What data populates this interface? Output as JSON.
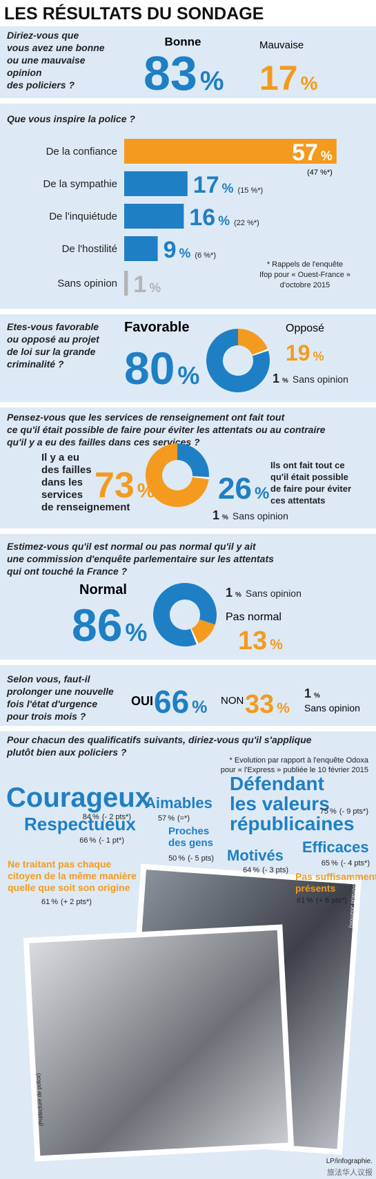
{
  "header": {
    "title": "LES RÉSULTATS DU SONDAGE"
  },
  "unit": "%",
  "q1": {
    "question": [
      "Diriez-vous que",
      "vous avez une bonne",
      "ou une mauvaise",
      "opinion",
      "des policiers ?"
    ],
    "options": [
      {
        "label": "Bonne",
        "value": 83,
        "color": "#1f7fc4"
      },
      {
        "label": "Mauvaise",
        "value": 17,
        "color": "#f39a1f"
      }
    ]
  },
  "q2": {
    "question": "Que vous inspire la police ?",
    "items": [
      {
        "label": "De la confiance",
        "value": 57,
        "previous": "(47 %*)",
        "color": "#f39a1f"
      },
      {
        "label": "De la sympathie",
        "value": 17,
        "previous": "(15 %*)",
        "color": "#1f7fc4"
      },
      {
        "label": "De l'inquiétude",
        "value": 16,
        "previous": "(22 %*)",
        "color": "#1f7fc4"
      },
      {
        "label": "De l'hostilité",
        "value": 9,
        "previous": "(6 %*)",
        "color": "#1f7fc4"
      },
      {
        "label": "Sans opinion",
        "value": 1,
        "color": "#b4b4b4"
      }
    ],
    "note": [
      "* Rappels de l'enquête",
      "Ifop  pour « Ouest-France »",
      "d'octobre 2015"
    ]
  },
  "q3": {
    "question": [
      "Etes-vous favorable",
      "ou opposé au projet",
      "de loi sur la grande",
      "criminalité ?"
    ],
    "options": [
      {
        "label": "Favorable",
        "value": 80,
        "color": "#1f7fc4"
      },
      {
        "label": "Opposé",
        "value": 19,
        "color": "#f39a1f"
      },
      {
        "label": "Sans opinion",
        "value": 1,
        "color": "#ffffff"
      }
    ]
  },
  "q4": {
    "question": [
      "Pensez-vous que les services de renseignement ont fait tout",
      "ce qu'il était possible de faire pour éviter les attentats ou au contraire",
      "qu'il y a eu des failles dans ces services ?"
    ],
    "options": [
      {
        "label": [
          "Il y a eu",
          "des failles",
          "dans les",
          "services",
          "de renseignement"
        ],
        "value": 73,
        "color": "#f39a1f"
      },
      {
        "label": [
          "Ils ont fait tout ce",
          "qu'il était possible",
          "de faire pour éviter",
          "ces attentats"
        ],
        "value": 26,
        "color": "#1f7fc4"
      },
      {
        "label": [
          "Sans opinion"
        ],
        "value": 1,
        "color": "#ffffff"
      }
    ]
  },
  "q5": {
    "question": [
      "Estimez-vous qu'il est normal ou pas normal qu'il y ait",
      "une commission d'enquête parlementaire sur les attentats",
      "qui ont touché la France ?"
    ],
    "options": [
      {
        "label": "Normal",
        "value": 86,
        "color": "#1f7fc4"
      },
      {
        "label": "Pas normal",
        "value": 13,
        "color": "#f39a1f"
      },
      {
        "label": "Sans opinion",
        "value": 1,
        "color": "#ffffff"
      }
    ]
  },
  "q6": {
    "question": [
      "Selon vous, faut-il",
      "prolonger une nouvelle",
      "fois l'état d'urgence",
      "pour trois mois ?"
    ],
    "options": [
      {
        "label": "OUI",
        "value": 66,
        "color": "#1f7fc4"
      },
      {
        "label": "NON",
        "value": 33,
        "color": "#f39a1f"
      },
      {
        "label": "Sans opinion",
        "value": 1,
        "color": "#222222"
      }
    ]
  },
  "q7": {
    "question": [
      "Pour chacun des qualificatifs suivants, diriez-vous qu'il s'applique",
      "plutôt bien aux policiers ?"
    ],
    "note": [
      "* Evolution par rapport à l'enquête Odoxa",
      "pour « l'Express » publiée le 10 février 2015"
    ],
    "words": [
      {
        "label": [
          "Courageux"
        ],
        "value": 84,
        "change": "(- 2 pts*)",
        "color": "#1f7fc4"
      },
      {
        "label": [
          "Respectueux"
        ],
        "value": 66,
        "change": "(- 1 pt*)",
        "color": "#1f7fc4"
      },
      {
        "label": [
          "Aimables"
        ],
        "value": 57,
        "change": "(=*)",
        "color": "#1f7fc4"
      },
      {
        "label": [
          "Proches",
          "des gens"
        ],
        "value": 50,
        "change": "(- 5 pts)",
        "color": "#1f7fc4"
      },
      {
        "label": [
          "Défendant",
          "les valeurs",
          "républicaines"
        ],
        "value": 75,
        "change": "(- 9 pts*)",
        "color": "#1f7fc4"
      },
      {
        "label": [
          "Motivés"
        ],
        "value": 64,
        "change": "(- 3 pts)",
        "color": "#1f7fc4"
      },
      {
        "label": [
          "Efficaces"
        ],
        "value": 65,
        "change": "(- 4 pts*)",
        "color": "#1f7fc4"
      },
      {
        "label": [
          "Ne traitant pas chaque",
          "citoyen de la même manière",
          "quelle que soit son origine"
        ],
        "value": 61,
        "change": "(+ 2 pts*)",
        "color": "#f39a1f"
      },
      {
        "label": [
          "Pas suffisamment",
          "présents"
        ],
        "value": 61,
        "change": "(+ 6 pts*)",
        "color": "#f39a1f"
      }
    ]
  },
  "photos": {
    "credit_left": "(Préfecture de police)",
    "credit_right": "(LP/Arnaud Journois)"
  },
  "footer": {
    "credit": "LP/infographie.",
    "watermark": "旅法华人议报"
  }
}
